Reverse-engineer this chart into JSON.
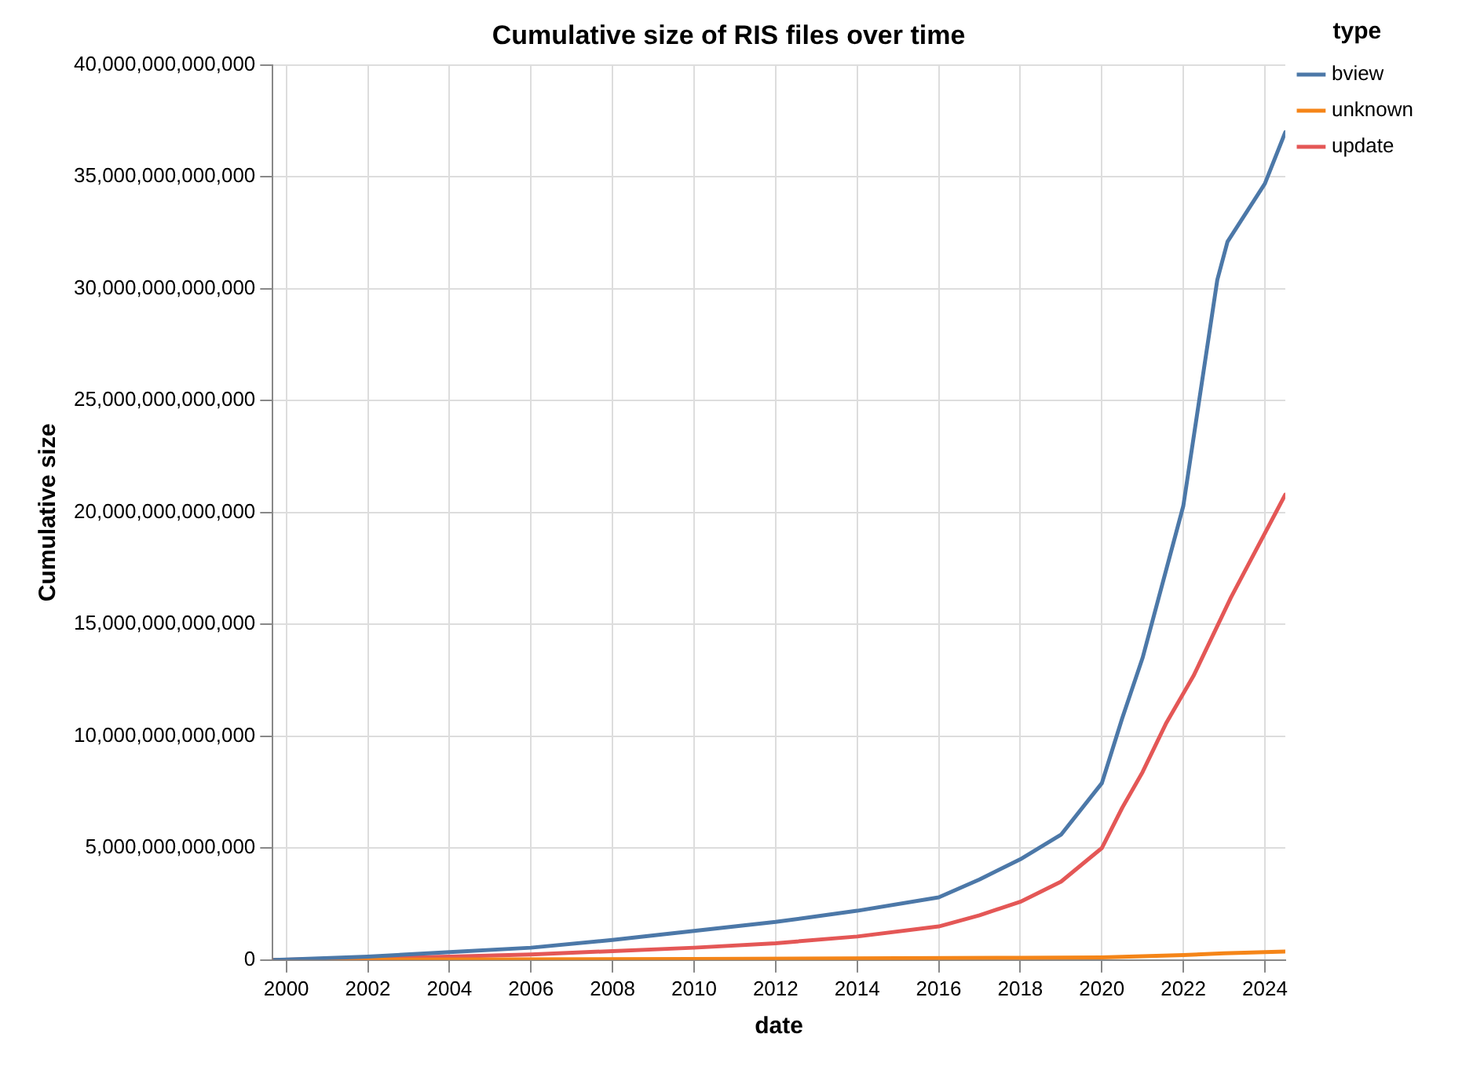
{
  "chart_data": {
    "type": "line",
    "title": "Cumulative size of RIS files over time",
    "xlabel": "date",
    "ylabel": "Cumulative size",
    "legend_title": "type",
    "legend": "top right",
    "grid": true,
    "marker": "none",
    "line_style": "solid",
    "xlim": [
      "1999-09",
      "2024-07"
    ],
    "xticks": [
      "2000",
      "2002",
      "2004",
      "2006",
      "2008",
      "2010",
      "2012",
      "2014",
      "2016",
      "2018",
      "2020",
      "2022",
      "2024"
    ],
    "ylim": [
      0,
      40000000000000
    ],
    "yticks": [
      {
        "value": 0,
        "label": "0"
      },
      {
        "value": 5000000000000,
        "label": "5,000,000,000,000"
      },
      {
        "value": 10000000000000,
        "label": "10,000,000,000,000"
      },
      {
        "value": 15000000000000,
        "label": "15,000,000,000,000"
      },
      {
        "value": 20000000000000,
        "label": "20,000,000,000,000"
      },
      {
        "value": 25000000000000,
        "label": "25,000,000,000,000"
      },
      {
        "value": 30000000000000,
        "label": "30,000,000,000,000"
      },
      {
        "value": 35000000000000,
        "label": "35,000,000,000,000"
      },
      {
        "value": 40000000000000,
        "label": "40,000,000,000,000"
      }
    ],
    "series": [
      {
        "name": "bview",
        "color": "#4c78a8",
        "x": [
          "1999-09",
          "2000-01",
          "2002-01",
          "2004-01",
          "2006-01",
          "2008-01",
          "2010-01",
          "2012-01",
          "2014-01",
          "2016-01",
          "2017-01",
          "2018-01",
          "2019-01",
          "2020-01",
          "2020-07",
          "2021-01",
          "2022-01",
          "2022-11",
          "2023-02",
          "2024-01",
          "2024-07"
        ],
        "values": [
          0,
          20000000000,
          150000000000,
          350000000000,
          550000000000,
          900000000000,
          1300000000000,
          1700000000000,
          2200000000000,
          2800000000000,
          3600000000000,
          4500000000000,
          5600000000000,
          7900000000000,
          10800000000000,
          13500000000000,
          20300000000000,
          30400000000000,
          32100000000000,
          34700000000000,
          37000000000000
        ]
      },
      {
        "name": "unknown",
        "color": "#f58518",
        "x": [
          "1999-09",
          "2010-01",
          "2018-01",
          "2020-01",
          "2022-01",
          "2023-01",
          "2024-07"
        ],
        "values": [
          0,
          50000000000,
          100000000000,
          120000000000,
          220000000000,
          300000000000,
          380000000000
        ]
      },
      {
        "name": "update",
        "color": "#e45756",
        "x": [
          "1999-09",
          "2002-01",
          "2004-01",
          "2006-01",
          "2008-01",
          "2010-01",
          "2012-01",
          "2014-01",
          "2016-01",
          "2017-01",
          "2018-01",
          "2019-01",
          "2020-01",
          "2020-07",
          "2021-01",
          "2021-08",
          "2022-04",
          "2023-03",
          "2024-07"
        ],
        "values": [
          0,
          80000000000,
          150000000000,
          250000000000,
          400000000000,
          550000000000,
          750000000000,
          1050000000000,
          1500000000000,
          2000000000000,
          2600000000000,
          3500000000000,
          5000000000000,
          6800000000000,
          8400000000000,
          10600000000000,
          12700000000000,
          16200000000000,
          20800000000000
        ]
      }
    ]
  }
}
